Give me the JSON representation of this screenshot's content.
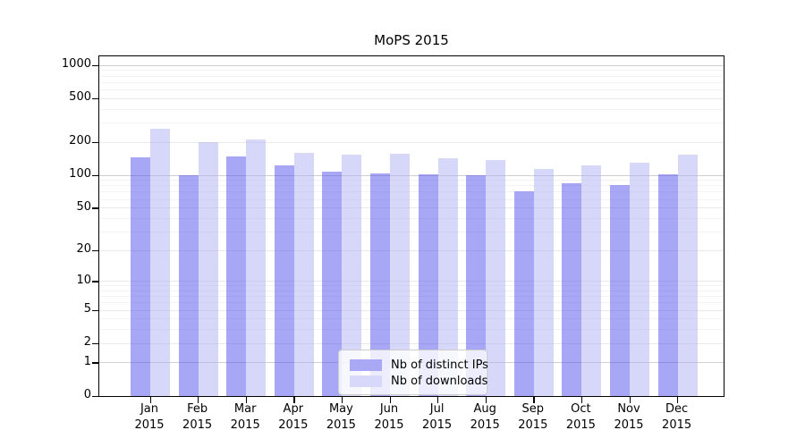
{
  "chart_data": {
    "type": "bar",
    "title": "MoPS 2015",
    "x_months": [
      "Jan",
      "Feb",
      "Mar",
      "Apr",
      "May",
      "Jun",
      "Jul",
      "Aug",
      "Sep",
      "Oct",
      "Nov",
      "Dec"
    ],
    "x_year": "2015",
    "series": [
      {
        "name": "Nb of distinct IPs",
        "swatch_color": "#a8a8f4",
        "bar_fill": "rgba(80,80,238,0.5)",
        "values": [
          145,
          100,
          148,
          124,
          108,
          104,
          102,
          101,
          71,
          85,
          81,
          102
        ]
      },
      {
        "name": "Nb of downloads",
        "swatch_color": "#d8d8fa",
        "bar_fill": "rgba(176,176,244,0.5)",
        "values": [
          265,
          200,
          213,
          160,
          155,
          157,
          142,
          138,
          114,
          124,
          131,
          155
        ]
      }
    ],
    "yscale": "log1p",
    "yticks": [
      0,
      1,
      2,
      5,
      10,
      20,
      50,
      100,
      200,
      500,
      1000
    ],
    "ylim": [
      0,
      1200
    ],
    "xlabel": "",
    "ylabel": "",
    "grid": true,
    "legend_position": "bottom-center"
  },
  "colors": {
    "axis": "#000000",
    "grid_major": "#cfcfcf",
    "grid_tick": "#e9e9e9",
    "grid_minor": "#f3f3f3",
    "background": "#ffffff"
  }
}
